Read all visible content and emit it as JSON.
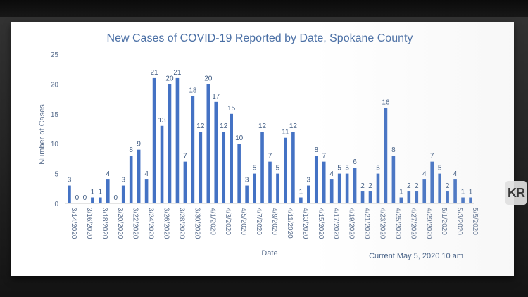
{
  "chart_data": {
    "type": "bar",
    "title": "New Cases of COVID-19 Reported by Date, Spokane County",
    "xlabel": "Date",
    "ylabel": "Number of Cases",
    "ylim": [
      0,
      25
    ],
    "yticks": [
      0,
      5,
      10,
      15,
      20,
      25
    ],
    "grid": false,
    "legend": "none",
    "bar_color": "#4472C4",
    "note": "Current May 5, 2020 10 am",
    "categories": [
      "3/14/2020",
      "3/15/2020",
      "3/16/2020",
      "3/17/2020",
      "3/18/2020",
      "3/19/2020",
      "3/20/2020",
      "3/21/2020",
      "3/22/2020",
      "3/23/2020",
      "3/24/2020",
      "3/25/2020",
      "3/26/2020",
      "3/27/2020",
      "3/28/2020",
      "3/29/2020",
      "3/30/2020",
      "3/31/2020",
      "4/1/2020",
      "4/2/2020",
      "4/3/2020",
      "4/4/2020",
      "4/5/2020",
      "4/6/2020",
      "4/7/2020",
      "4/8/2020",
      "4/9/2020",
      "4/10/2020",
      "4/11/2020",
      "4/12/2020",
      "4/13/2020",
      "4/14/2020",
      "4/15/2020",
      "4/16/2020",
      "4/17/2020",
      "4/18/2020",
      "4/19/2020",
      "4/20/2020",
      "4/21/2020",
      "4/22/2020",
      "4/23/2020",
      "4/24/2020",
      "4/25/2020",
      "4/26/2020",
      "4/27/2020",
      "4/28/2020",
      "4/29/2020",
      "4/30/2020",
      "5/1/2020",
      "5/2/2020",
      "5/3/2020",
      "5/4/2020",
      "5/5/2020"
    ],
    "tick_labels": [
      "3/14/2020",
      "3/16/2020",
      "3/18/2020",
      "3/20/2020",
      "3/22/2020",
      "3/24/2020",
      "3/26/2020",
      "3/28/2020",
      "3/30/2020",
      "4/1/2020",
      "4/3/2020",
      "4/5/2020",
      "4/7/2020",
      "4/9/2020",
      "4/11/2020",
      "4/13/2020",
      "4/15/2020",
      "4/17/2020",
      "4/19/2020",
      "4/21/2020",
      "4/23/2020",
      "4/25/2020",
      "4/27/2020",
      "4/29/2020",
      "5/1/2020",
      "5/3/2020",
      "5/5/2020"
    ],
    "values": [
      3,
      0,
      0,
      1,
      1,
      4,
      0,
      3,
      8,
      9,
      4,
      21,
      13,
      20,
      21,
      7,
      18,
      12,
      20,
      17,
      12,
      15,
      10,
      3,
      5,
      12,
      7,
      5,
      11,
      12,
      1,
      3,
      8,
      7,
      4,
      5,
      5,
      6,
      2,
      2,
      5,
      16,
      8,
      1,
      2,
      2,
      4,
      7,
      5,
      2,
      4,
      1,
      1
    ]
  },
  "watermark": {
    "text": "KR"
  }
}
